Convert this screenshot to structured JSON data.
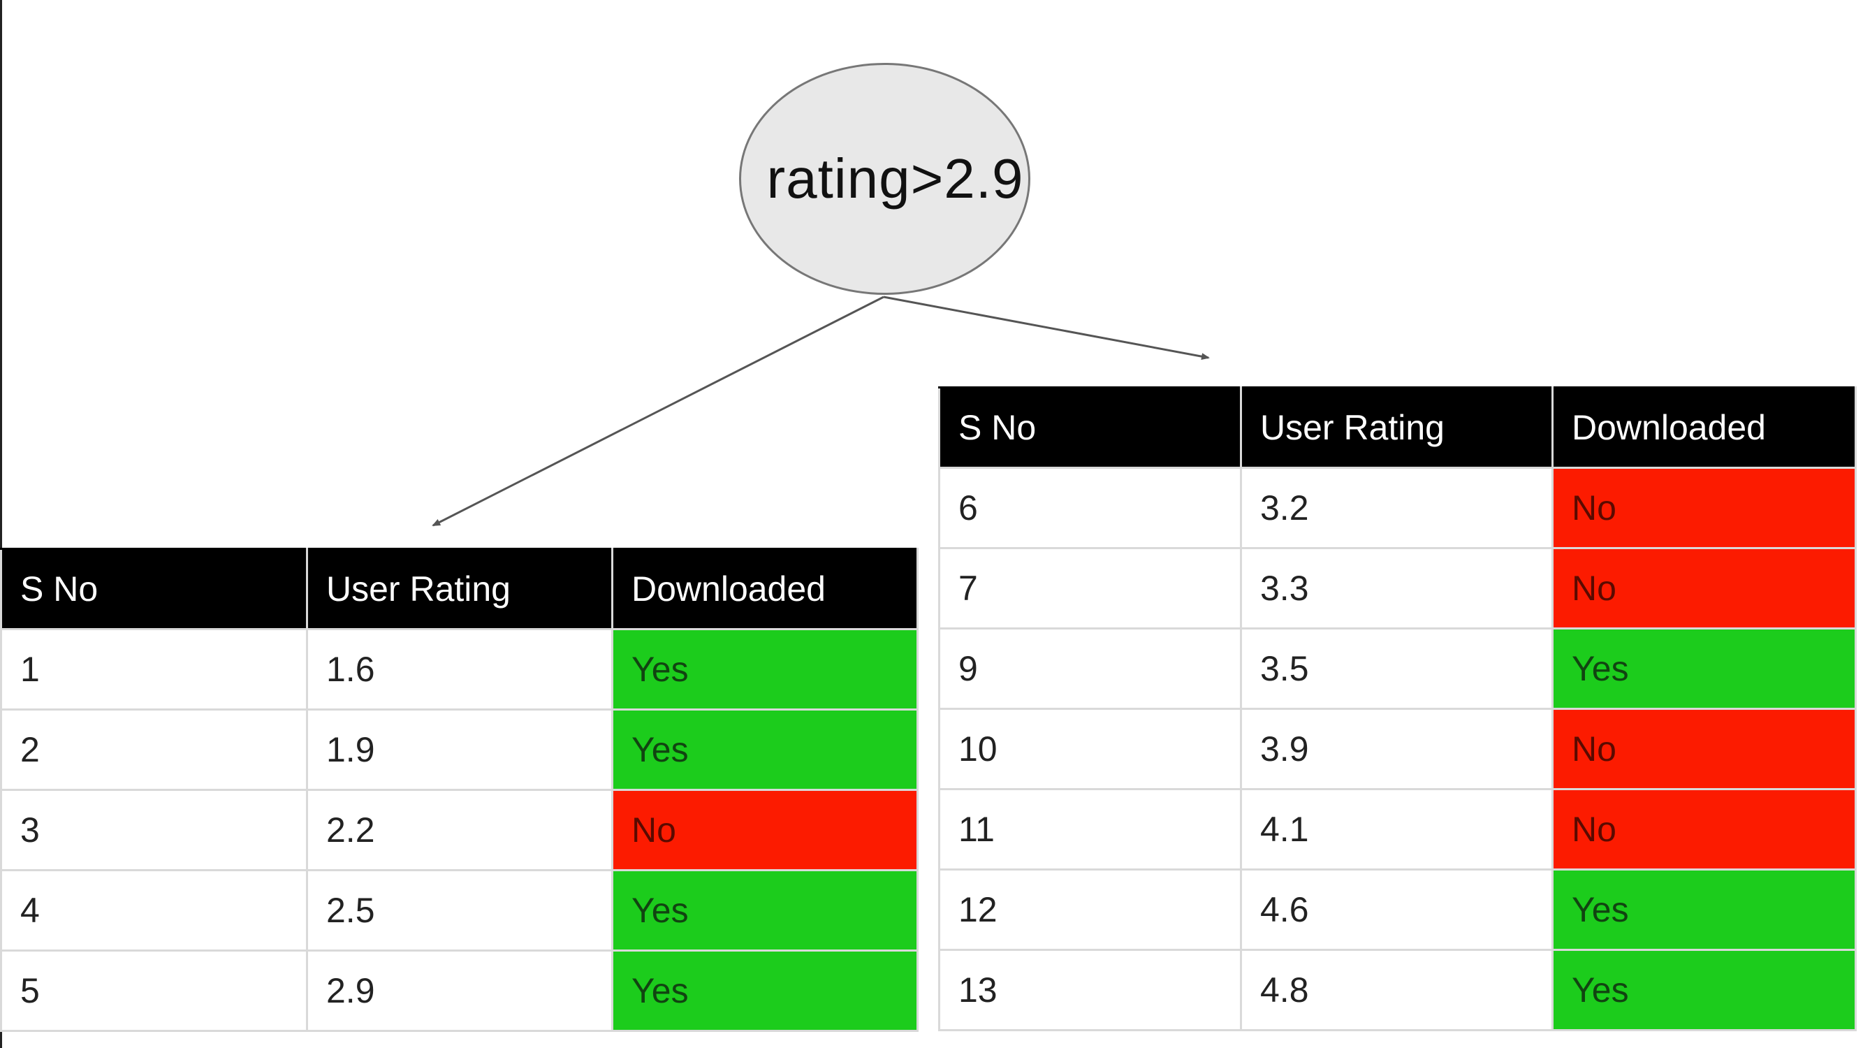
{
  "node": {
    "label": "rating>2.9"
  },
  "headers": [
    "S No",
    "User Rating",
    "Downloaded"
  ],
  "left_table": {
    "rows": [
      {
        "sno": "1",
        "rating": "1.6",
        "downloaded": "Yes"
      },
      {
        "sno": "2",
        "rating": "1.9",
        "downloaded": "Yes"
      },
      {
        "sno": "3",
        "rating": "2.2",
        "downloaded": "No"
      },
      {
        "sno": "4",
        "rating": "2.5",
        "downloaded": "Yes"
      },
      {
        "sno": "5",
        "rating": "2.9",
        "downloaded": "Yes"
      }
    ]
  },
  "right_table": {
    "rows": [
      {
        "sno": "6",
        "rating": "3.2",
        "downloaded": "No"
      },
      {
        "sno": "7",
        "rating": "3.3",
        "downloaded": "No"
      },
      {
        "sno": "9",
        "rating": "3.5",
        "downloaded": "Yes"
      },
      {
        "sno": "10",
        "rating": "3.9",
        "downloaded": "No"
      },
      {
        "sno": "11",
        "rating": "4.1",
        "downloaded": "No"
      },
      {
        "sno": "12",
        "rating": "4.6",
        "downloaded": "Yes"
      },
      {
        "sno": "13",
        "rating": "4.8",
        "downloaded": "Yes"
      }
    ]
  },
  "colors": {
    "yes": "#1ccc1c",
    "no": "#fc1b00",
    "header": "#000000",
    "node_fill": "#e8e8e8"
  }
}
